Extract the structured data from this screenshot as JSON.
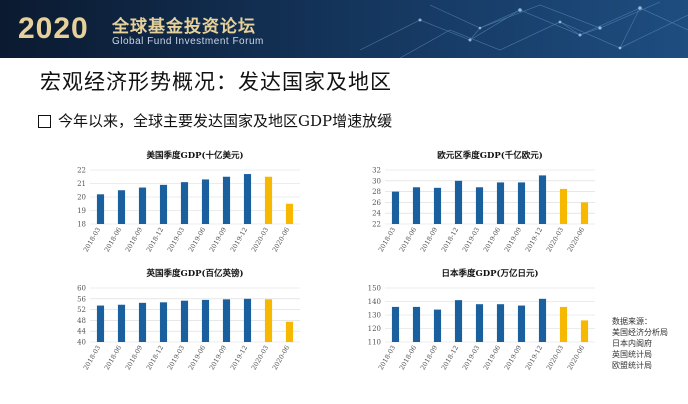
{
  "header": {
    "year": "2020",
    "forum_cn": "全球基金投资论坛",
    "forum_en": "Global Fund Investment Forum",
    "colors": {
      "banner": "#0f2340",
      "gold": "#e7d19a"
    }
  },
  "slide": {
    "title": "宏观经济形势概况：发达国家及地区",
    "subtitle": "今年以来，全球主要发达国家及地区GDP增速放缓"
  },
  "source": {
    "lines": [
      "数据来源：",
      "美国经济分析局",
      "日本内阁府",
      "英国统计局",
      "欧盟统计局"
    ]
  },
  "colors": {
    "blue": "#1a5f9e",
    "yellow": "#f6b800"
  },
  "chart_data": [
    {
      "type": "bar",
      "title": "美国季度GDP(十亿美元)",
      "categories": [
        "2018-03",
        "2018-06",
        "2018-09",
        "2018-12",
        "2019-03",
        "2019-06",
        "2019-09",
        "2019-12",
        "2020-03",
        "2020-06"
      ],
      "values": [
        20.2,
        20.5,
        20.7,
        20.9,
        21.1,
        21.3,
        21.5,
        21.7,
        21.5,
        19.5
      ],
      "highlight_from": 8,
      "ylim": [
        18,
        22
      ],
      "yticks": [
        18,
        19,
        20,
        21,
        22
      ]
    },
    {
      "type": "bar",
      "title": "欧元区季度GDP(千亿欧元)",
      "categories": [
        "2018-03",
        "2018-06",
        "2018-09",
        "2018-12",
        "2019-03",
        "2019-06",
        "2019-09",
        "2019-12",
        "2020-03",
        "2020-06"
      ],
      "values": [
        28.0,
        28.8,
        28.7,
        30.0,
        28.8,
        29.7,
        29.7,
        31.0,
        28.5,
        26.0
      ],
      "highlight_from": 8,
      "ylim": [
        22,
        32
      ],
      "yticks": [
        22,
        24,
        26,
        28,
        30,
        32
      ]
    },
    {
      "type": "bar",
      "title": "英国季度GDP(百亿英镑)",
      "categories": [
        "2018-03",
        "2018-06",
        "2018-09",
        "2018-12",
        "2019-03",
        "2019-06",
        "2019-09",
        "2019-12",
        "2020-03",
        "2020-06"
      ],
      "values": [
        53.5,
        53.8,
        54.5,
        54.7,
        55.3,
        55.6,
        55.8,
        56.0,
        55.8,
        47.5
      ],
      "highlight_from": 8,
      "ylim": [
        40,
        60
      ],
      "yticks": [
        40,
        44,
        48,
        52,
        56,
        60
      ]
    },
    {
      "type": "bar",
      "title": "日本季度GDP(万亿日元)",
      "categories": [
        "2018-03",
        "2018-06",
        "2018-09",
        "2018-12",
        "2019-03",
        "2019-06",
        "2019-09",
        "2019-12",
        "2020-03",
        "2020-06"
      ],
      "values": [
        136,
        136,
        134,
        141,
        138,
        138,
        137,
        142,
        136,
        126
      ],
      "highlight_from": 8,
      "ylim": [
        110,
        150
      ],
      "yticks": [
        110,
        120,
        130,
        140,
        150
      ]
    }
  ]
}
